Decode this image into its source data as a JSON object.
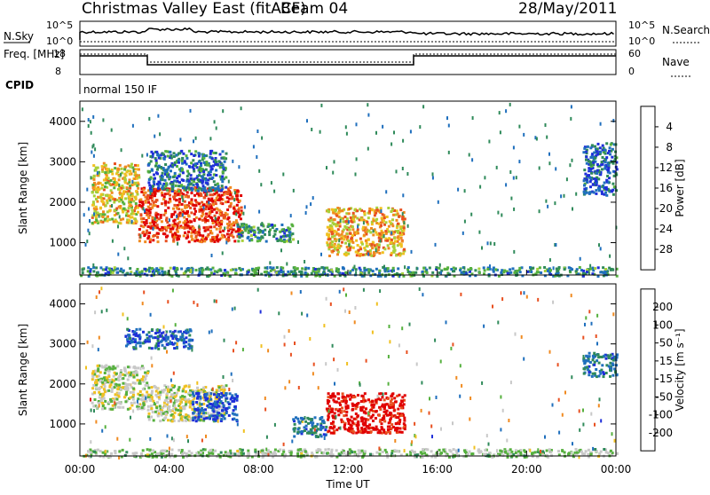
{
  "header": {
    "title": "Christmas Valley East (fitACF)",
    "beam": "Beam 04",
    "date": "28/May/2011"
  },
  "control_panels": {
    "nsky_label": "N.Sky",
    "nsearch_label": "N.Search",
    "nsky_ticks": [
      "10^5",
      "10^0"
    ],
    "nsearch_ticks": [
      "10^5",
      "10^0"
    ],
    "freq_label": "Freq. [MHz]",
    "freq_ticks": [
      "18",
      "8"
    ],
    "nave_label": "Nave",
    "nave_ticks": [
      "60",
      "0"
    ],
    "cpid_label": "CPID",
    "cpid_value": "normal 150 IF"
  },
  "colors": {
    "power_scale": [
      "#1f2fd9",
      "#1f6fbd",
      "#2f8a5a",
      "#55b03e",
      "#a8d03a",
      "#f0c020",
      "#f08a20",
      "#e85020",
      "#e00000"
    ],
    "velocity_scale": [
      "#1f2fd9",
      "#1f6fbd",
      "#2f8a5a",
      "#55b03e",
      "#c8c8c8",
      "#f0c020",
      "#f08a20",
      "#e85020",
      "#e00000"
    ],
    "gray": "#c8c8c8"
  },
  "chart_data": [
    {
      "type": "heatmap",
      "panel": "power",
      "ylabel": "Slant Range [km]",
      "ylim": [
        200,
        4500
      ],
      "yticks": [
        "1000",
        "2000",
        "3000",
        "4000"
      ],
      "xlim": [
        0,
        24
      ],
      "colorbar_label": "Power [dB]",
      "colorbar_ticks": [
        "4",
        "8",
        "12",
        "16",
        "20",
        "24",
        "28"
      ],
      "colorbar_range": [
        0,
        30
      ],
      "echo_regions": [
        {
          "t0": 0.5,
          "t1": 2.6,
          "r0": 1500,
          "r1": 3000,
          "level": 18
        },
        {
          "t0": 2.6,
          "t1": 7.2,
          "r0": 1050,
          "r1": 2400,
          "level": 26
        },
        {
          "t0": 3.0,
          "t1": 6.5,
          "r0": 2300,
          "r1": 3300,
          "level": 6
        },
        {
          "t0": 7.0,
          "t1": 9.5,
          "r0": 1050,
          "r1": 1500,
          "level": 8
        },
        {
          "t0": 11.0,
          "t1": 14.5,
          "r0": 700,
          "r1": 1900,
          "level": 20
        },
        {
          "t0": 22.5,
          "t1": 24.0,
          "r0": 2200,
          "r1": 3500,
          "level": 5
        },
        {
          "t0": 0.0,
          "t1": 24.0,
          "r0": 200,
          "r1": 420,
          "level": 8
        }
      ]
    },
    {
      "type": "heatmap",
      "panel": "velocity",
      "ylabel": "Slant Range [km]",
      "xlabel": "Time UT",
      "ylim": [
        200,
        4500
      ],
      "yticks": [
        "1000",
        "2000",
        "3000",
        "4000"
      ],
      "xticks": [
        "00:00",
        "04:00",
        "08:00",
        "12:00",
        "16:00",
        "20:00",
        "00:00"
      ],
      "xlim": [
        0,
        24
      ],
      "colorbar_label": "Velocity [m s⁻¹]",
      "colorbar_ticks": [
        "200",
        "100",
        "50",
        "15",
        "-15",
        "-50",
        "-100",
        "-200"
      ],
      "colorbar_range": [
        -250,
        250
      ],
      "echo_regions": [
        {
          "t0": 0.5,
          "t1": 3.0,
          "r0": 1400,
          "r1": 2500,
          "vel": 0
        },
        {
          "t0": 3.0,
          "t1": 6.5,
          "r0": 1100,
          "r1": 2000,
          "vel": 0
        },
        {
          "t0": 2.0,
          "t1": 5.0,
          "r0": 2900,
          "r1": 3400,
          "vel": 180
        },
        {
          "t0": 5.0,
          "t1": 7.0,
          "r0": 1100,
          "r1": 1800,
          "vel": 200
        },
        {
          "t0": 9.5,
          "t1": 11.0,
          "r0": 700,
          "r1": 1200,
          "vel": 150
        },
        {
          "t0": 11.0,
          "t1": 14.5,
          "r0": 800,
          "r1": 1800,
          "vel": -230
        },
        {
          "t0": 22.5,
          "t1": 24.0,
          "r0": 2200,
          "r1": 2800,
          "vel": 150
        },
        {
          "t0": 0.0,
          "t1": 24.0,
          "r0": 200,
          "r1": 400,
          "vel": 30
        }
      ]
    }
  ]
}
